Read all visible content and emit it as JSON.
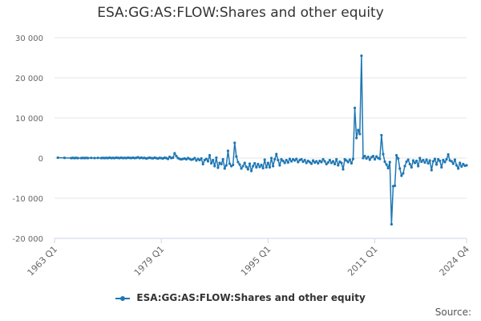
{
  "chart_data": {
    "type": "line",
    "title": "ESA:GG:AS:FLOW:Shares and other equity",
    "ylim": [
      -20000,
      30000
    ],
    "y_ticks": [
      30000,
      20000,
      10000,
      0,
      -10000,
      -20000
    ],
    "y_tick_labels": [
      "30 000",
      "20 000",
      "10 000",
      "0",
      "-10 000",
      "-20 000"
    ],
    "x_range": [
      "1963 Q1",
      "2024 Q4"
    ],
    "x_tick_labels": [
      "1963 Q1",
      "1979 Q1",
      "1995 Q1",
      "2011 Q1",
      "2024 Q4"
    ],
    "x_tick_years": [
      1963,
      1979,
      1995,
      2011,
      2024.75
    ],
    "grid": "horizontal",
    "legend_position": "bottom",
    "series": [
      {
        "name": "ESA:GG:AS:FLOW:Shares and other equity",
        "color": "#1f77b4",
        "points": [
          [
            "1963 Q3",
            100
          ],
          [
            "1964 Q3",
            50
          ],
          [
            "1965 Q3",
            0
          ],
          [
            "1965 Q4",
            50
          ],
          [
            "1966 Q1",
            0
          ],
          [
            "1966 Q2",
            50
          ],
          [
            "1966 Q3",
            0
          ],
          [
            "1967 Q1",
            0
          ],
          [
            "1967 Q2",
            50
          ],
          [
            "1967 Q3",
            0
          ],
          [
            "1967 Q4",
            50
          ],
          [
            "1968 Q1",
            0
          ],
          [
            "1968 Q3",
            50
          ],
          [
            "1969 Q1",
            0
          ],
          [
            "1969 Q3",
            50
          ],
          [
            "1970 Q1",
            0
          ],
          [
            "1970 Q2",
            50
          ],
          [
            "1970 Q3",
            0
          ],
          [
            "1970 Q4",
            50
          ],
          [
            "1971 Q1",
            0
          ],
          [
            "1971 Q2",
            100
          ],
          [
            "1971 Q3",
            0
          ],
          [
            "1971 Q4",
            50
          ],
          [
            "1972 Q1",
            0
          ],
          [
            "1972 Q2",
            100
          ],
          [
            "1972 Q3",
            50
          ],
          [
            "1972 Q4",
            0
          ],
          [
            "1973 Q1",
            100
          ],
          [
            "1973 Q2",
            0
          ],
          [
            "1973 Q3",
            50
          ],
          [
            "1973 Q4",
            0
          ],
          [
            "1974 Q1",
            100
          ],
          [
            "1974 Q2",
            50
          ],
          [
            "1974 Q3",
            0
          ],
          [
            "1974 Q4",
            100
          ],
          [
            "1975 Q1",
            0
          ],
          [
            "1975 Q2",
            50
          ],
          [
            "1975 Q3",
            200
          ],
          [
            "1975 Q4",
            0
          ],
          [
            "1976 Q1",
            100
          ],
          [
            "1976 Q2",
            0
          ],
          [
            "1976 Q3",
            50
          ],
          [
            "1976 Q4",
            -100
          ],
          [
            "1977 Q1",
            0
          ],
          [
            "1977 Q2",
            100
          ],
          [
            "1977 Q3",
            0
          ],
          [
            "1977 Q4",
            -50
          ],
          [
            "1978 Q1",
            100
          ],
          [
            "1978 Q2",
            0
          ],
          [
            "1978 Q3",
            -100
          ],
          [
            "1978 Q4",
            50
          ],
          [
            "1979 Q1",
            0
          ],
          [
            "1979 Q2",
            -100
          ],
          [
            "1979 Q3",
            100
          ],
          [
            "1979 Q4",
            0
          ],
          [
            "1980 Q1",
            -200
          ],
          [
            "1980 Q2",
            300
          ],
          [
            "1980 Q3",
            0
          ],
          [
            "1980 Q4",
            100
          ],
          [
            "1981 Q1",
            1200
          ],
          [
            "1981 Q2",
            500
          ],
          [
            "1981 Q3",
            0
          ],
          [
            "1981 Q4",
            -200
          ],
          [
            "1982 Q1",
            -300
          ],
          [
            "1982 Q2",
            -200
          ],
          [
            "1982 Q3",
            -100
          ],
          [
            "1982 Q4",
            -300
          ],
          [
            "1983 Q1",
            0
          ],
          [
            "1983 Q2",
            -200
          ],
          [
            "1983 Q3",
            -400
          ],
          [
            "1983 Q4",
            -300
          ],
          [
            "1984 Q1",
            0
          ],
          [
            "1984 Q2",
            -600
          ],
          [
            "1984 Q3",
            -200
          ],
          [
            "1984 Q4",
            -500
          ],
          [
            "1985 Q1",
            -100
          ],
          [
            "1985 Q2",
            -1500
          ],
          [
            "1985 Q3",
            -500
          ],
          [
            "1985 Q4",
            -200
          ],
          [
            "1986 Q1",
            -800
          ],
          [
            "1986 Q2",
            700
          ],
          [
            "1986 Q3",
            -1300
          ],
          [
            "1986 Q4",
            -500
          ],
          [
            "1987 Q1",
            -2000
          ],
          [
            "1987 Q2",
            100
          ],
          [
            "1987 Q3",
            -2400
          ],
          [
            "1987 Q4",
            -1200
          ],
          [
            "1988 Q1",
            -1500
          ],
          [
            "1988 Q2",
            -300
          ],
          [
            "1988 Q3",
            -2600
          ],
          [
            "1988 Q4",
            -1800
          ],
          [
            "1989 Q1",
            1800
          ],
          [
            "1989 Q2",
            -1400
          ],
          [
            "1989 Q3",
            -2000
          ],
          [
            "1989 Q4",
            -1700
          ],
          [
            "1990 Q1",
            3800
          ],
          [
            "1990 Q2",
            400
          ],
          [
            "1990 Q3",
            -1000
          ],
          [
            "1990 Q4",
            -1600
          ],
          [
            "1991 Q1",
            -2600
          ],
          [
            "1991 Q2",
            -2000
          ],
          [
            "1991 Q3",
            -1200
          ],
          [
            "1991 Q4",
            -2200
          ],
          [
            "1992 Q1",
            -2800
          ],
          [
            "1992 Q2",
            -1400
          ],
          [
            "1992 Q3",
            -3200
          ],
          [
            "1992 Q4",
            -2000
          ],
          [
            "1993 Q1",
            -1300
          ],
          [
            "1993 Q2",
            -2300
          ],
          [
            "1993 Q3",
            -1500
          ],
          [
            "1993 Q4",
            -2200
          ],
          [
            "1994 Q1",
            -1700
          ],
          [
            "1994 Q2",
            -2500
          ],
          [
            "1994 Q3",
            -400
          ],
          [
            "1994 Q4",
            -2300
          ],
          [
            "1995 Q1",
            -1200
          ],
          [
            "1995 Q2",
            -2300
          ],
          [
            "1995 Q3",
            0
          ],
          [
            "1995 Q4",
            -2000
          ],
          [
            "1996 Q1",
            -300
          ],
          [
            "1996 Q2",
            1000
          ],
          [
            "1996 Q3",
            -500
          ],
          [
            "1996 Q4",
            -1800
          ],
          [
            "1997 Q1",
            -300
          ],
          [
            "1997 Q2",
            -700
          ],
          [
            "1997 Q3",
            -1200
          ],
          [
            "1997 Q4",
            -500
          ],
          [
            "1998 Q1",
            -1100
          ],
          [
            "1998 Q2",
            -200
          ],
          [
            "1998 Q3",
            -800
          ],
          [
            "1998 Q4",
            -300
          ],
          [
            "1999 Q1",
            -600
          ],
          [
            "1999 Q2",
            -200
          ],
          [
            "1999 Q3",
            -1000
          ],
          [
            "1999 Q4",
            -500
          ],
          [
            "2000 Q1",
            -300
          ],
          [
            "2000 Q2",
            -900
          ],
          [
            "2000 Q3",
            -500
          ],
          [
            "2000 Q4",
            -1200
          ],
          [
            "2001 Q1",
            -700
          ],
          [
            "2001 Q2",
            -1000
          ],
          [
            "2001 Q3",
            -1400
          ],
          [
            "2001 Q4",
            -600
          ],
          [
            "2002 Q1",
            -1100
          ],
          [
            "2002 Q2",
            -800
          ],
          [
            "2002 Q3",
            -1300
          ],
          [
            "2002 Q4",
            -700
          ],
          [
            "2003 Q1",
            -1000
          ],
          [
            "2003 Q2",
            -300
          ],
          [
            "2003 Q3",
            -800
          ],
          [
            "2003 Q4",
            -1500
          ],
          [
            "2004 Q1",
            -1100
          ],
          [
            "2004 Q2",
            -500
          ],
          [
            "2004 Q3",
            -1200
          ],
          [
            "2004 Q4",
            -800
          ],
          [
            "2005 Q1",
            -1500
          ],
          [
            "2005 Q2",
            -300
          ],
          [
            "2005 Q3",
            -1800
          ],
          [
            "2005 Q4",
            -900
          ],
          [
            "2006 Q1",
            -1200
          ],
          [
            "2006 Q2",
            -2800
          ],
          [
            "2006 Q3",
            -300
          ],
          [
            "2006 Q4",
            -600
          ],
          [
            "2007 Q1",
            -1000
          ],
          [
            "2007 Q2",
            -400
          ],
          [
            "2007 Q3",
            -1300
          ],
          [
            "2007 Q4",
            -200
          ],
          [
            "2008 Q1",
            12500
          ],
          [
            "2008 Q2",
            5000
          ],
          [
            "2008 Q3",
            7000
          ],
          [
            "2008 Q4",
            6000
          ],
          [
            "2009 Q1",
            25500
          ],
          [
            "2009 Q2",
            0
          ],
          [
            "2009 Q3",
            500
          ],
          [
            "2009 Q4",
            -100
          ],
          [
            "2010 Q1",
            300
          ],
          [
            "2010 Q2",
            -400
          ],
          [
            "2010 Q3",
            200
          ],
          [
            "2010 Q4",
            500
          ],
          [
            "2011 Q1",
            -300
          ],
          [
            "2011 Q2",
            400
          ],
          [
            "2011 Q3",
            0
          ],
          [
            "2011 Q4",
            -200
          ],
          [
            "2012 Q1",
            5700
          ],
          [
            "2012 Q2",
            1000
          ],
          [
            "2012 Q3",
            -900
          ],
          [
            "2012 Q4",
            -1600
          ],
          [
            "2013 Q1",
            -2500
          ],
          [
            "2013 Q2",
            -1000
          ],
          [
            "2013 Q3",
            -16500
          ],
          [
            "2013 Q4",
            -7000
          ],
          [
            "2014 Q1",
            -6900
          ],
          [
            "2014 Q2",
            700
          ],
          [
            "2014 Q3",
            -100
          ],
          [
            "2014 Q4",
            -2600
          ],
          [
            "2015 Q1",
            -4400
          ],
          [
            "2015 Q2",
            -3800
          ],
          [
            "2015 Q3",
            -2000
          ],
          [
            "2015 Q4",
            -900
          ],
          [
            "2016 Q1",
            -400
          ],
          [
            "2016 Q2",
            -1500
          ],
          [
            "2016 Q3",
            -2300
          ],
          [
            "2016 Q4",
            -600
          ],
          [
            "2017 Q1",
            -1200
          ],
          [
            "2017 Q2",
            -700
          ],
          [
            "2017 Q3",
            -2000
          ],
          [
            "2017 Q4",
            0
          ],
          [
            "2018 Q1",
            -900
          ],
          [
            "2018 Q2",
            -500
          ],
          [
            "2018 Q3",
            -1100
          ],
          [
            "2018 Q4",
            -400
          ],
          [
            "2019 Q1",
            -1300
          ],
          [
            "2019 Q2",
            -600
          ],
          [
            "2019 Q3",
            -3000
          ],
          [
            "2019 Q4",
            -800
          ],
          [
            "2020 Q1",
            -200
          ],
          [
            "2020 Q2",
            -1600
          ],
          [
            "2020 Q3",
            -300
          ],
          [
            "2020 Q4",
            -700
          ],
          [
            "2021 Q1",
            -2300
          ],
          [
            "2021 Q2",
            -500
          ],
          [
            "2021 Q3",
            -1000
          ],
          [
            "2021 Q4",
            -300
          ],
          [
            "2022 Q1",
            900
          ],
          [
            "2022 Q2",
            -600
          ],
          [
            "2022 Q3",
            -800
          ],
          [
            "2022 Q4",
            -1400
          ],
          [
            "2023 Q1",
            -400
          ],
          [
            "2023 Q2",
            -1800
          ],
          [
            "2023 Q3",
            -2600
          ],
          [
            "2023 Q4",
            -1200
          ],
          [
            "2024 Q1",
            -2100
          ],
          [
            "2024 Q2",
            -1500
          ],
          [
            "2024 Q3",
            -1900
          ],
          [
            "2024 Q4",
            -1800
          ]
        ]
      }
    ]
  },
  "legend": {
    "label": "ESA:GG:AS:FLOW:Shares and other equity"
  },
  "footer": {
    "source_label": "Source:"
  }
}
